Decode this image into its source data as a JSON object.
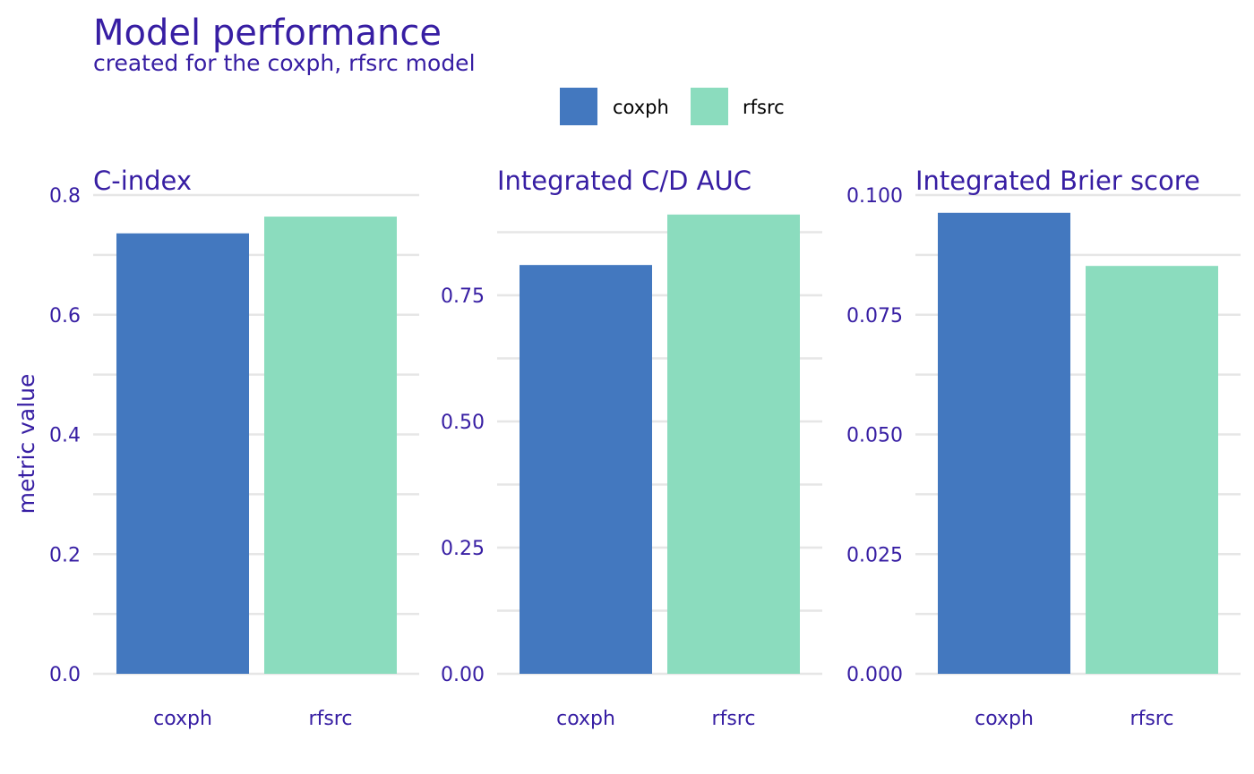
{
  "colors": {
    "text": "#371ea3",
    "legend_text": "#000000",
    "grid": "#e6e6e6",
    "background": "#ffffff"
  },
  "header": {
    "title": "Model performance",
    "subtitle": "created for the coxph, rfsrc model"
  },
  "legend": {
    "position": "top-center",
    "items": [
      {
        "label": "coxph",
        "color": "#4378bf"
      },
      {
        "label": "rfsrc",
        "color": "#8bdcbe"
      }
    ]
  },
  "chart_data": [
    {
      "type": "bar",
      "title": "C-index",
      "ylabel": "metric value",
      "categories": [
        "coxph",
        "rfsrc"
      ],
      "values": [
        0.736,
        0.764
      ],
      "colors": [
        "#4378bf",
        "#8bdcbe"
      ],
      "ylim": [
        0,
        0.8
      ],
      "major_ticks": [
        0.0,
        0.2,
        0.4,
        0.6,
        0.8
      ],
      "tick_labels": [
        "0.0",
        "0.2",
        "0.4",
        "0.6",
        "0.8"
      ],
      "minor_ticks": [
        0.1,
        0.3,
        0.5,
        0.7
      ],
      "grid": true
    },
    {
      "type": "bar",
      "title": "Integrated C/D AUC",
      "ylabel": "",
      "categories": [
        "coxph",
        "rfsrc"
      ],
      "values": [
        0.81,
        0.91
      ],
      "colors": [
        "#4378bf",
        "#8bdcbe"
      ],
      "ylim": [
        0,
        0.95
      ],
      "major_ticks": [
        0.0,
        0.25,
        0.5,
        0.75
      ],
      "tick_labels": [
        "0.00",
        "0.25",
        "0.50",
        "0.75"
      ],
      "minor_ticks": [
        0.125,
        0.375,
        0.625,
        0.875
      ],
      "grid": true
    },
    {
      "type": "bar",
      "title": "Integrated Brier score",
      "ylabel": "",
      "categories": [
        "coxph",
        "rfsrc"
      ],
      "values": [
        0.0963,
        0.0852
      ],
      "colors": [
        "#4378bf",
        "#8bdcbe"
      ],
      "ylim": [
        0,
        0.1
      ],
      "major_ticks": [
        0.0,
        0.025,
        0.05,
        0.075,
        0.1
      ],
      "tick_labels": [
        "0.000",
        "0.025",
        "0.050",
        "0.075",
        "0.100"
      ],
      "minor_ticks": [
        0.0125,
        0.0375,
        0.0625,
        0.0875
      ],
      "grid": true
    }
  ]
}
